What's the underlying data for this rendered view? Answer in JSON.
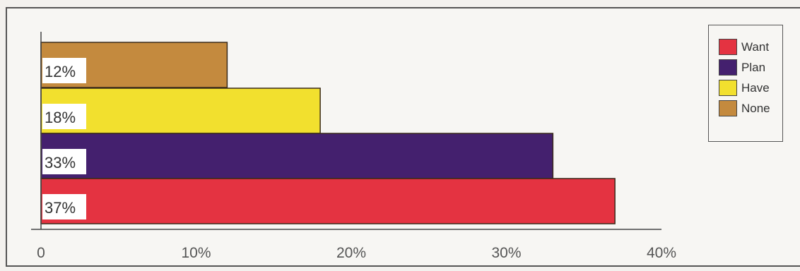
{
  "chart_data": {
    "type": "bar",
    "orientation": "horizontal",
    "bars": [
      {
        "series": "None",
        "value": 12,
        "label": "12%",
        "color": "#c48a3e"
      },
      {
        "series": "Have",
        "value": 18,
        "label": "18%",
        "color": "#f2e02e"
      },
      {
        "series": "Plan",
        "value": 33,
        "label": "33%",
        "color": "#44206e"
      },
      {
        "series": "Want",
        "value": 37,
        "label": "37%",
        "color": "#e43341"
      }
    ],
    "xticks": [
      {
        "value": 0,
        "label": "0"
      },
      {
        "value": 10,
        "label": "10%"
      },
      {
        "value": 20,
        "label": "20%"
      },
      {
        "value": 30,
        "label": "30%"
      },
      {
        "value": 40,
        "label": "40%"
      }
    ],
    "xlim": [
      0,
      40
    ],
    "legend_position": "top-right",
    "grid": false
  },
  "legend": [
    {
      "label": "Want",
      "color": "#e43341"
    },
    {
      "label": "Plan",
      "color": "#44206e"
    },
    {
      "label": "Have",
      "color": "#f2e02e"
    },
    {
      "label": "None",
      "color": "#c48a3e"
    }
  ]
}
